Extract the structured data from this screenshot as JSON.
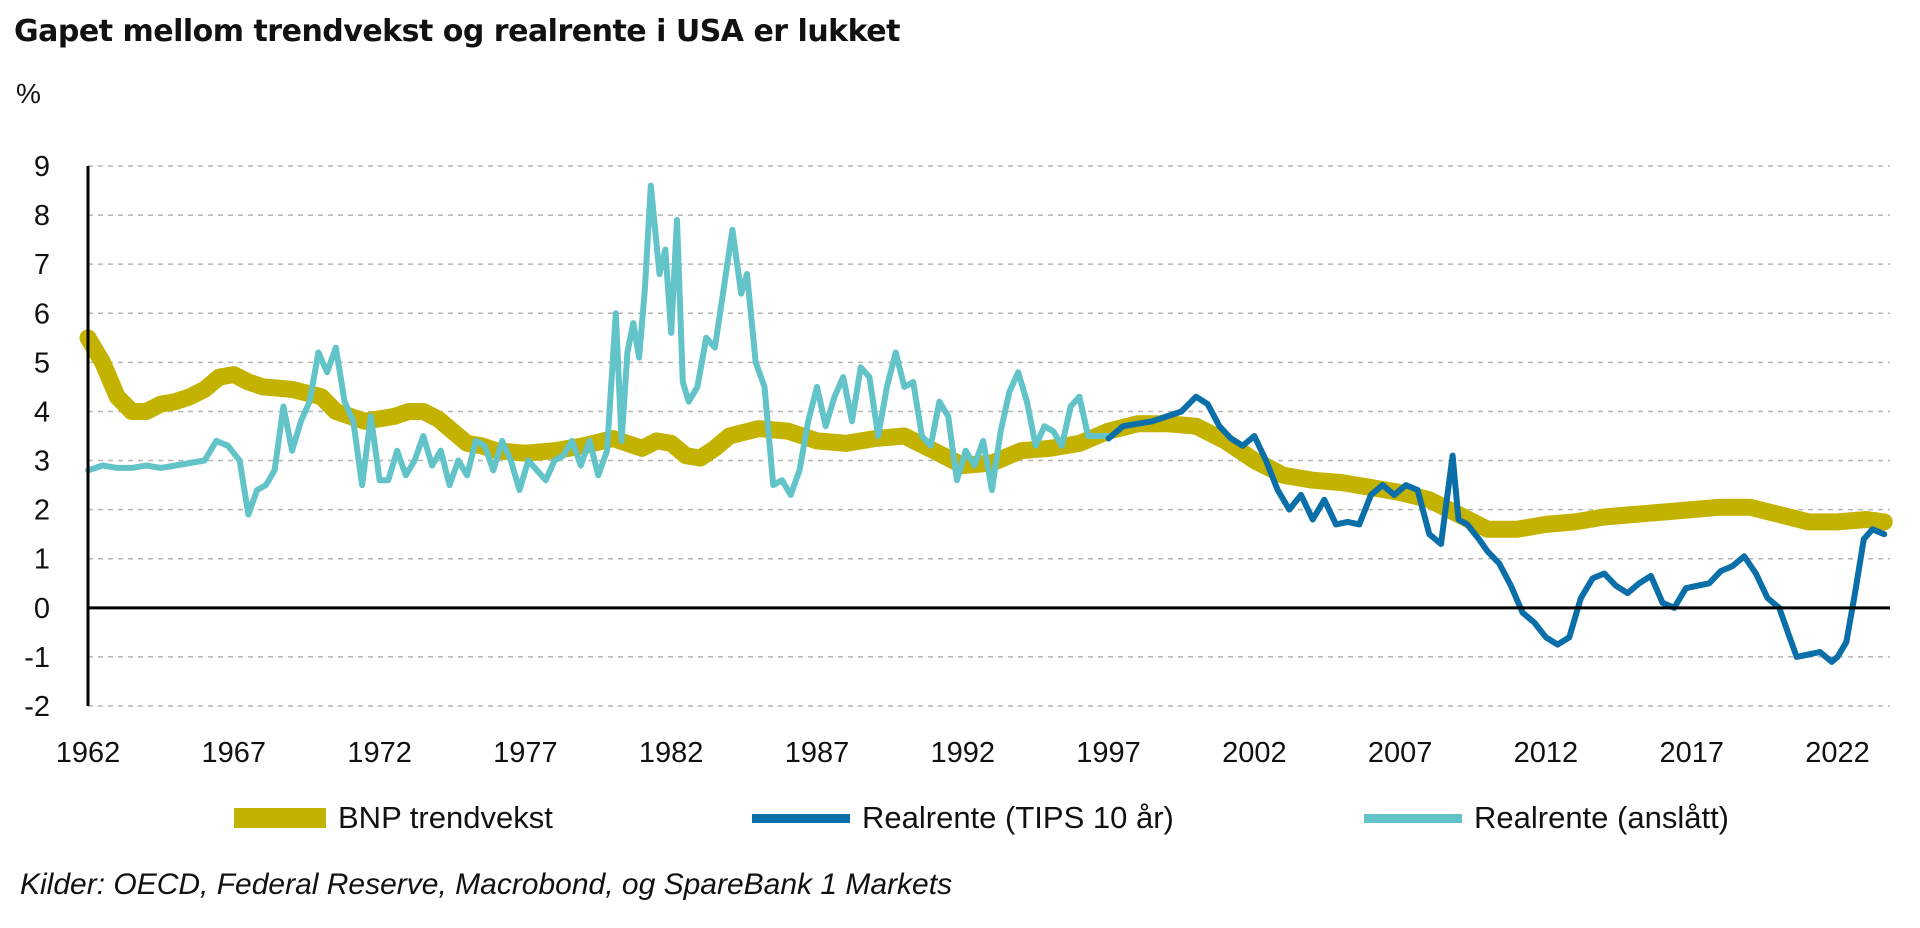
{
  "title": "Gapet mellom trendvekst og realrente i USA er lukket",
  "unit_label": "%",
  "source": "Kilder: OECD, Federal Reserve, Macrobond, og SpareBank 1 Markets",
  "colors": {
    "trend": "#c4b200",
    "tips": "#0a6fa8",
    "estimated": "#62c3c8",
    "zero_line": "#000000",
    "grid": "#b5b5b5"
  },
  "chart_data": {
    "type": "line",
    "title": "Gapet mellom trendvekst og realrente i USA er lukket",
    "ylabel": "%",
    "xlabel": "",
    "xlim": [
      1962,
      2023.8
    ],
    "ylim": [
      -2,
      9
    ],
    "yticks": [
      -2,
      -1,
      0,
      1,
      2,
      3,
      4,
      5,
      6,
      7,
      8,
      9
    ],
    "xticks": [
      1962,
      1967,
      1972,
      1977,
      1982,
      1987,
      1992,
      1997,
      2002,
      2007,
      2012,
      2017,
      2022
    ],
    "grid": "horizontal dashed",
    "legend_position": "bottom",
    "series": [
      {
        "name": "BNP trendvekst",
        "x": [
          1962,
          1962.5,
          1963,
          1963.5,
          1964,
          1964.5,
          1965,
          1965.5,
          1966,
          1966.5,
          1967,
          1967.5,
          1968,
          1969,
          1970,
          1970.5,
          1971,
          1971.5,
          1972,
          1972.5,
          1973,
          1973.5,
          1974,
          1974.5,
          1975,
          1975.5,
          1976,
          1977,
          1978,
          1979,
          1980,
          1980.5,
          1981,
          1981.5,
          1982,
          1982.5,
          1983,
          1983.5,
          1984,
          1985,
          1986,
          1987,
          1988,
          1989,
          1990,
          1991,
          1992,
          1993,
          1994,
          1995,
          1996,
          1997,
          1998,
          1999,
          2000,
          2001,
          2002,
          2003,
          2004,
          2005,
          2006,
          2007,
          2008,
          2009,
          2010,
          2011,
          2012,
          2013,
          2014,
          2015,
          2016,
          2017,
          2018,
          2019,
          2020,
          2021,
          2022,
          2023,
          2023.6
        ],
        "values": [
          5.5,
          5.0,
          4.3,
          4.0,
          4.0,
          4.15,
          4.2,
          4.3,
          4.45,
          4.7,
          4.75,
          4.6,
          4.5,
          4.45,
          4.3,
          4.0,
          3.9,
          3.8,
          3.85,
          3.9,
          4.0,
          4.0,
          3.85,
          3.6,
          3.35,
          3.3,
          3.2,
          3.15,
          3.2,
          3.3,
          3.45,
          3.35,
          3.25,
          3.4,
          3.35,
          3.1,
          3.05,
          3.25,
          3.5,
          3.65,
          3.6,
          3.4,
          3.35,
          3.45,
          3.5,
          3.2,
          2.9,
          2.95,
          3.2,
          3.25,
          3.35,
          3.6,
          3.75,
          3.75,
          3.7,
          3.4,
          3.0,
          2.7,
          2.6,
          2.55,
          2.45,
          2.35,
          2.2,
          1.9,
          1.6,
          1.6,
          1.7,
          1.75,
          1.85,
          1.9,
          1.95,
          2.0,
          2.05,
          2.05,
          1.9,
          1.75,
          1.75,
          1.8,
          1.75
        ]
      },
      {
        "name": "Realrente (TIPS 10 år)",
        "x": [
          1997.0,
          1997.5,
          1998.0,
          1998.5,
          1999.0,
          1999.5,
          2000.0,
          2000.4,
          2000.8,
          2001.2,
          2001.6,
          2002.0,
          2002.4,
          2002.8,
          2003.2,
          2003.6,
          2004.0,
          2004.4,
          2004.8,
          2005.2,
          2005.6,
          2006.0,
          2006.4,
          2006.8,
          2007.2,
          2007.6,
          2008.0,
          2008.4,
          2008.8,
          2009.0,
          2009.3,
          2009.7,
          2010.0,
          2010.4,
          2010.8,
          2011.2,
          2011.6,
          2012.0,
          2012.4,
          2012.8,
          2013.2,
          2013.6,
          2014.0,
          2014.4,
          2014.8,
          2015.2,
          2015.6,
          2016.0,
          2016.4,
          2016.8,
          2017.2,
          2017.6,
          2018.0,
          2018.4,
          2018.8,
          2019.2,
          2019.6,
          2020.0,
          2020.3,
          2020.6,
          2021.0,
          2021.4,
          2021.8,
          2022.0,
          2022.3,
          2022.6,
          2022.9,
          2023.2,
          2023.6
        ],
        "values": [
          3.45,
          3.7,
          3.75,
          3.8,
          3.9,
          4.0,
          4.3,
          4.15,
          3.7,
          3.45,
          3.3,
          3.5,
          3.0,
          2.4,
          2.0,
          2.3,
          1.8,
          2.2,
          1.7,
          1.75,
          1.7,
          2.3,
          2.5,
          2.3,
          2.5,
          2.4,
          1.5,
          1.3,
          3.1,
          1.8,
          1.7,
          1.4,
          1.15,
          0.9,
          0.45,
          -0.1,
          -0.3,
          -0.6,
          -0.75,
          -0.6,
          0.2,
          0.6,
          0.7,
          0.45,
          0.3,
          0.5,
          0.65,
          0.1,
          0.0,
          0.4,
          0.45,
          0.5,
          0.75,
          0.85,
          1.05,
          0.7,
          0.2,
          0.0,
          -0.5,
          -1.0,
          -0.95,
          -0.9,
          -1.1,
          -1.0,
          -0.7,
          0.3,
          1.4,
          1.6,
          1.5
        ]
      },
      {
        "name": "Realrente (anslått)",
        "x": [
          1962.0,
          1962.5,
          1963.0,
          1963.5,
          1964.0,
          1964.5,
          1965.0,
          1965.5,
          1966.0,
          1966.4,
          1966.8,
          1967.2,
          1967.5,
          1967.8,
          1968.1,
          1968.4,
          1968.7,
          1969.0,
          1969.3,
          1969.6,
          1969.9,
          1970.2,
          1970.5,
          1970.8,
          1971.1,
          1971.4,
          1971.7,
          1972.0,
          1972.3,
          1972.6,
          1972.9,
          1973.2,
          1973.5,
          1973.8,
          1974.1,
          1974.4,
          1974.7,
          1975.0,
          1975.3,
          1975.6,
          1975.9,
          1976.2,
          1976.5,
          1976.8,
          1977.1,
          1977.4,
          1977.7,
          1978.0,
          1978.3,
          1978.6,
          1978.9,
          1979.2,
          1979.5,
          1979.8,
          1980.1,
          1980.3,
          1980.5,
          1980.7,
          1980.9,
          1981.1,
          1981.3,
          1981.6,
          1981.8,
          1982.0,
          1982.2,
          1982.4,
          1982.6,
          1982.9,
          1983.2,
          1983.5,
          1983.8,
          1984.1,
          1984.4,
          1984.6,
          1984.9,
          1985.2,
          1985.5,
          1985.8,
          1986.1,
          1986.4,
          1986.7,
          1987.0,
          1987.3,
          1987.6,
          1987.9,
          1988.2,
          1988.5,
          1988.8,
          1989.1,
          1989.4,
          1989.7,
          1990.0,
          1990.3,
          1990.6,
          1990.9,
          1991.2,
          1991.5,
          1991.8,
          1992.1,
          1992.4,
          1992.7,
          1993.0,
          1993.3,
          1993.6,
          1993.9,
          1994.2,
          1994.5,
          1994.8,
          1995.1,
          1995.4,
          1995.7,
          1996.0,
          1996.3,
          1996.6,
          1996.9,
          1997.0
        ],
        "values": [
          2.8,
          2.9,
          2.85,
          2.85,
          2.9,
          2.85,
          2.9,
          2.95,
          3.0,
          3.4,
          3.3,
          3.0,
          1.9,
          2.4,
          2.5,
          2.8,
          4.1,
          3.2,
          3.8,
          4.2,
          5.2,
          4.8,
          5.3,
          4.2,
          3.8,
          2.5,
          3.9,
          2.6,
          2.6,
          3.2,
          2.7,
          3.0,
          3.5,
          2.9,
          3.2,
          2.5,
          3.0,
          2.7,
          3.4,
          3.3,
          2.8,
          3.4,
          3.0,
          2.4,
          3.0,
          2.8,
          2.6,
          3.0,
          3.1,
          3.4,
          2.9,
          3.4,
          2.7,
          3.2,
          6.0,
          3.4,
          5.2,
          5.8,
          5.1,
          6.5,
          8.6,
          6.8,
          7.3,
          5.6,
          7.9,
          4.6,
          4.2,
          4.5,
          5.5,
          5.3,
          6.5,
          7.7,
          6.4,
          6.8,
          5.0,
          4.5,
          2.5,
          2.6,
          2.3,
          2.8,
          3.8,
          4.5,
          3.7,
          4.3,
          4.7,
          3.8,
          4.9,
          4.7,
          3.5,
          4.5,
          5.2,
          4.5,
          4.6,
          3.5,
          3.3,
          4.2,
          3.9,
          2.6,
          3.2,
          2.9,
          3.4,
          2.4,
          3.6,
          4.4,
          4.8,
          4.2,
          3.3,
          3.7,
          3.6,
          3.3,
          4.1,
          4.3,
          3.5,
          3.5,
          3.5,
          3.5
        ]
      }
    ]
  },
  "legend": [
    {
      "label": "BNP trendvekst",
      "color": "#c4b200"
    },
    {
      "label": "Realrente (TIPS 10 år)",
      "color": "#0a6fa8"
    },
    {
      "label": "Realrente (anslått)",
      "color": "#62c3c8"
    }
  ]
}
